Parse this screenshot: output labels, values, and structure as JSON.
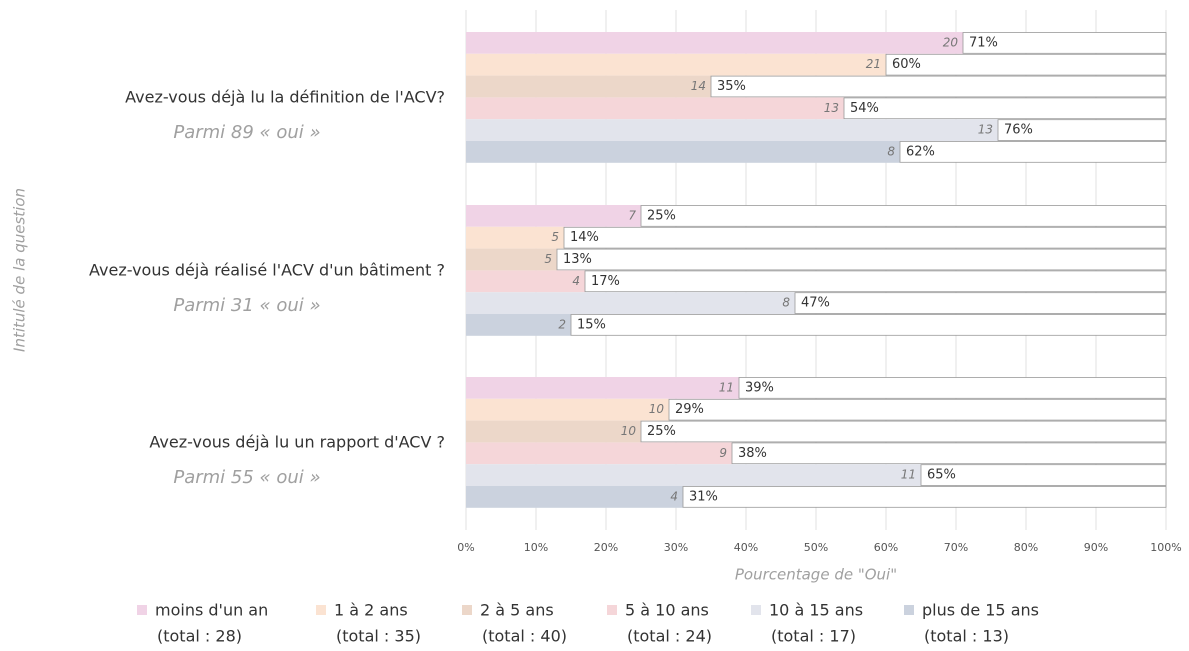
{
  "chart_data": {
    "type": "bar",
    "orientation": "horizontal",
    "categories": [
      "Avez-vous déjà lu la définition  de l'ACV?",
      "Avez-vous déjà réalisé l'ACV d'un bâtiment ?",
      "Avez-vous déjà lu un rapport d'ACV ?"
    ],
    "subtitles": [
      "Parmi 89 « oui »",
      "Parmi 31 « oui »",
      "Parmi 55 « oui »"
    ],
    "x_label": "Pourcentage de \"Oui\"",
    "y_label": "Intitulé de la question",
    "xlim": [
      0,
      100
    ],
    "xticks": [
      {
        "value": 0,
        "label": "0%"
      },
      {
        "value": 10,
        "label": "10%"
      },
      {
        "value": 20,
        "label": "20%"
      },
      {
        "value": 30,
        "label": "30%"
      },
      {
        "value": 40,
        "label": "40%"
      },
      {
        "value": 50,
        "label": "50%"
      },
      {
        "value": 60,
        "label": "60%"
      },
      {
        "value": 70,
        "label": "70%"
      },
      {
        "value": 80,
        "label": "80%"
      },
      {
        "value": 90,
        "label": "90%"
      },
      {
        "value": 100,
        "label": "100%"
      }
    ],
    "grid": true,
    "series": [
      {
        "name": "moins d'un an",
        "note": "(total : 28)",
        "color": "#f0d3e6",
        "values": [
          71,
          25,
          39
        ],
        "value_labels": [
          "71%",
          "25%",
          "39%"
        ],
        "counts": [
          20,
          7,
          11
        ]
      },
      {
        "name": "1 à 2 ans",
        "note": "(total : 35)",
        "color": "#fbe3d2",
        "values": [
          60,
          14,
          29
        ],
        "value_labels": [
          "60%",
          "14%",
          "29%"
        ],
        "counts": [
          21,
          5,
          10
        ]
      },
      {
        "name": "2 à 5 ans",
        "note": "(total : 40)",
        "color": "#ecd7c9",
        "values": [
          35,
          13,
          25
        ],
        "value_labels": [
          "35%",
          "13%",
          "25%"
        ],
        "counts": [
          14,
          5,
          10
        ]
      },
      {
        "name": "5 à 10 ans",
        "note": "(total : 24)",
        "color": "#f5d6d9",
        "values": [
          54,
          17,
          38
        ],
        "value_labels": [
          "54%",
          "17%",
          "38%"
        ],
        "counts": [
          13,
          4,
          9
        ]
      },
      {
        "name": "10 à 15 ans",
        "note": "(total : 17)",
        "color": "#e2e4ec",
        "values": [
          76,
          47,
          65
        ],
        "value_labels": [
          "76%",
          "47%",
          "65%"
        ],
        "counts": [
          13,
          8,
          11
        ]
      },
      {
        "name": "plus de 15 ans",
        "note": "(total : 13)",
        "color": "#cbd2de",
        "values": [
          62,
          15,
          31
        ],
        "value_labels": [
          "62%",
          "15%",
          "31%"
        ],
        "counts": [
          8,
          2,
          4
        ]
      }
    ]
  }
}
